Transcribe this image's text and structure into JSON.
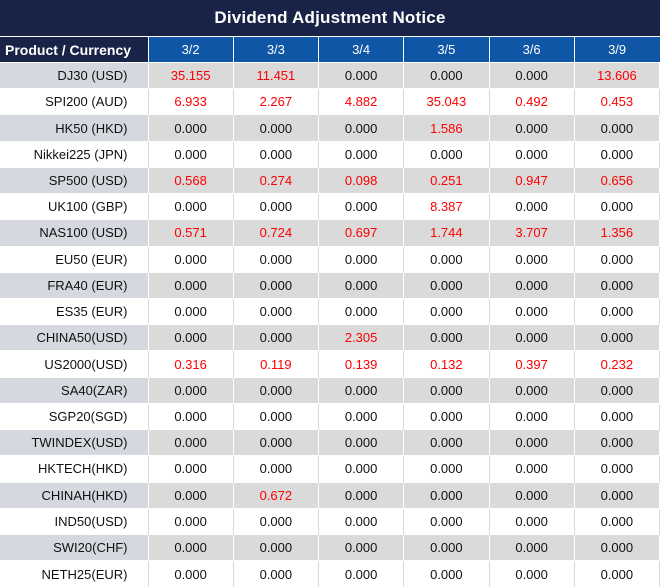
{
  "title": "Dividend Adjustment Notice",
  "colors": {
    "title_bg": "#182347",
    "header_bg": "#1056a6",
    "stripe_gray": "#dadada",
    "product_stripe_gray": "#d5d8df",
    "value_red": "#fe0000",
    "value_black": "#111111",
    "header_text": "#ffffff"
  },
  "chart_data": {
    "type": "table",
    "title": "Dividend Adjustment Notice",
    "columns": [
      "Product / Currency",
      "3/2",
      "3/3",
      "3/4",
      "3/5",
      "3/6",
      "3/9"
    ],
    "zero_value": "0.000",
    "highlight_rule": "non-zero dividend values are rendered in red",
    "rows": [
      {
        "product": "DJ30 (USD)",
        "values": [
          "35.155",
          "11.451",
          "0.000",
          "0.000",
          "0.000",
          "13.606"
        ]
      },
      {
        "product": "SPI200 (AUD)",
        "values": [
          "6.933",
          "2.267",
          "4.882",
          "35.043",
          "0.492",
          "0.453"
        ]
      },
      {
        "product": "HK50 (HKD)",
        "values": [
          "0.000",
          "0.000",
          "0.000",
          "1.586",
          "0.000",
          "0.000"
        ]
      },
      {
        "product": "Nikkei225 (JPN)",
        "values": [
          "0.000",
          "0.000",
          "0.000",
          "0.000",
          "0.000",
          "0.000"
        ]
      },
      {
        "product": "SP500 (USD)",
        "values": [
          "0.568",
          "0.274",
          "0.098",
          "0.251",
          "0.947",
          "0.656"
        ]
      },
      {
        "product": "UK100 (GBP)",
        "values": [
          "0.000",
          "0.000",
          "0.000",
          "8.387",
          "0.000",
          "0.000"
        ]
      },
      {
        "product": "NAS100 (USD)",
        "values": [
          "0.571",
          "0.724",
          "0.697",
          "1.744",
          "3.707",
          "1.356"
        ]
      },
      {
        "product": "EU50 (EUR)",
        "values": [
          "0.000",
          "0.000",
          "0.000",
          "0.000",
          "0.000",
          "0.000"
        ]
      },
      {
        "product": "FRA40 (EUR)",
        "values": [
          "0.000",
          "0.000",
          "0.000",
          "0.000",
          "0.000",
          "0.000"
        ]
      },
      {
        "product": "ES35 (EUR)",
        "values": [
          "0.000",
          "0.000",
          "0.000",
          "0.000",
          "0.000",
          "0.000"
        ]
      },
      {
        "product": "CHINA50(USD)",
        "values": [
          "0.000",
          "0.000",
          "2.305",
          "0.000",
          "0.000",
          "0.000"
        ]
      },
      {
        "product": "US2000(USD)",
        "values": [
          "0.316",
          "0.119",
          "0.139",
          "0.132",
          "0.397",
          "0.232"
        ]
      },
      {
        "product": "SA40(ZAR)",
        "values": [
          "0.000",
          "0.000",
          "0.000",
          "0.000",
          "0.000",
          "0.000"
        ]
      },
      {
        "product": "SGP20(SGD)",
        "values": [
          "0.000",
          "0.000",
          "0.000",
          "0.000",
          "0.000",
          "0.000"
        ]
      },
      {
        "product": "TWINDEX(USD)",
        "values": [
          "0.000",
          "0.000",
          "0.000",
          "0.000",
          "0.000",
          "0.000"
        ]
      },
      {
        "product": "HKTECH(HKD)",
        "values": [
          "0.000",
          "0.000",
          "0.000",
          "0.000",
          "0.000",
          "0.000"
        ]
      },
      {
        "product": "CHINAH(HKD)",
        "values": [
          "0.000",
          "0.672",
          "0.000",
          "0.000",
          "0.000",
          "0.000"
        ]
      },
      {
        "product": "IND50(USD)",
        "values": [
          "0.000",
          "0.000",
          "0.000",
          "0.000",
          "0.000",
          "0.000"
        ]
      },
      {
        "product": "SWI20(CHF)",
        "values": [
          "0.000",
          "0.000",
          "0.000",
          "0.000",
          "0.000",
          "0.000"
        ]
      },
      {
        "product": "NETH25(EUR)",
        "values": [
          "0.000",
          "0.000",
          "0.000",
          "0.000",
          "0.000",
          "0.000"
        ]
      }
    ]
  }
}
